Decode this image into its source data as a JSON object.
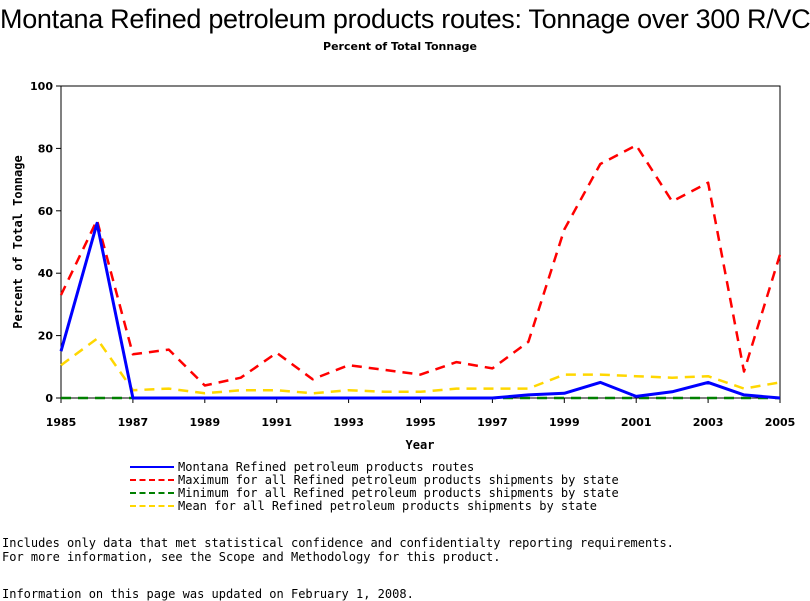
{
  "page": {
    "notes": [
      "Includes only data that met statistical confidence and confidentialty reporting requirements.",
      "For more information, see the Scope and Methodology for this product."
    ],
    "updated": "Information on this page was updated on February 1, 2008."
  },
  "chart_data": {
    "type": "line",
    "title": "Montana Refined petroleum products routes: Tonnage over 300 R/VC",
    "subtitle": "Percent of Total Tonnage",
    "xlabel": "Year",
    "ylabel": "Percent of Total Tonnage",
    "xlim": [
      1985,
      2005
    ],
    "ylim": [
      0,
      100
    ],
    "x_ticks": [
      1985,
      1987,
      1989,
      1991,
      1993,
      1995,
      1997,
      1999,
      2001,
      2003,
      2005
    ],
    "y_ticks": [
      0,
      20,
      40,
      60,
      80,
      100
    ],
    "grid": false,
    "legend_position": "bottom",
    "x": [
      1985,
      1986,
      1987,
      1988,
      1989,
      1990,
      1991,
      1992,
      1993,
      1994,
      1995,
      1996,
      1997,
      1998,
      1999,
      2000,
      2001,
      2002,
      2003,
      2004,
      2005
    ],
    "series": [
      {
        "name": "Montana Refined petroleum products routes",
        "color": "#0000ff",
        "style": "solid",
        "values": [
          15,
          56,
          0,
          0,
          0,
          0,
          0,
          0,
          0,
          0,
          0,
          0,
          0,
          1,
          1.5,
          5,
          0.5,
          2,
          5,
          1,
          0
        ]
      },
      {
        "name": "Maximum for all Refined petroleum products shipments by state",
        "color": "#ff0000",
        "style": "dashed",
        "values": [
          33,
          57,
          14,
          15.5,
          4,
          6.5,
          14.5,
          6,
          10.5,
          9,
          7.5,
          11.5,
          9.5,
          18,
          54,
          75,
          81,
          63,
          69,
          8.5,
          46
        ]
      },
      {
        "name": "Minimum for all Refined petroleum products shipments by state",
        "color": "#008000",
        "style": "dashed",
        "values": [
          0,
          0,
          0,
          0,
          0,
          0,
          0,
          0,
          0,
          0,
          0,
          0,
          0,
          0,
          0,
          0,
          0,
          0,
          0,
          0,
          0
        ]
      },
      {
        "name": "Mean for all Refined petroleum products shipments by state",
        "color": "#ffd700",
        "style": "dashed",
        "values": [
          10.5,
          19,
          2.5,
          3,
          1.5,
          2.5,
          2.5,
          1.5,
          2.5,
          2,
          2,
          3,
          3,
          3,
          7.5,
          7.5,
          7,
          6.5,
          7,
          3,
          5
        ]
      }
    ]
  }
}
